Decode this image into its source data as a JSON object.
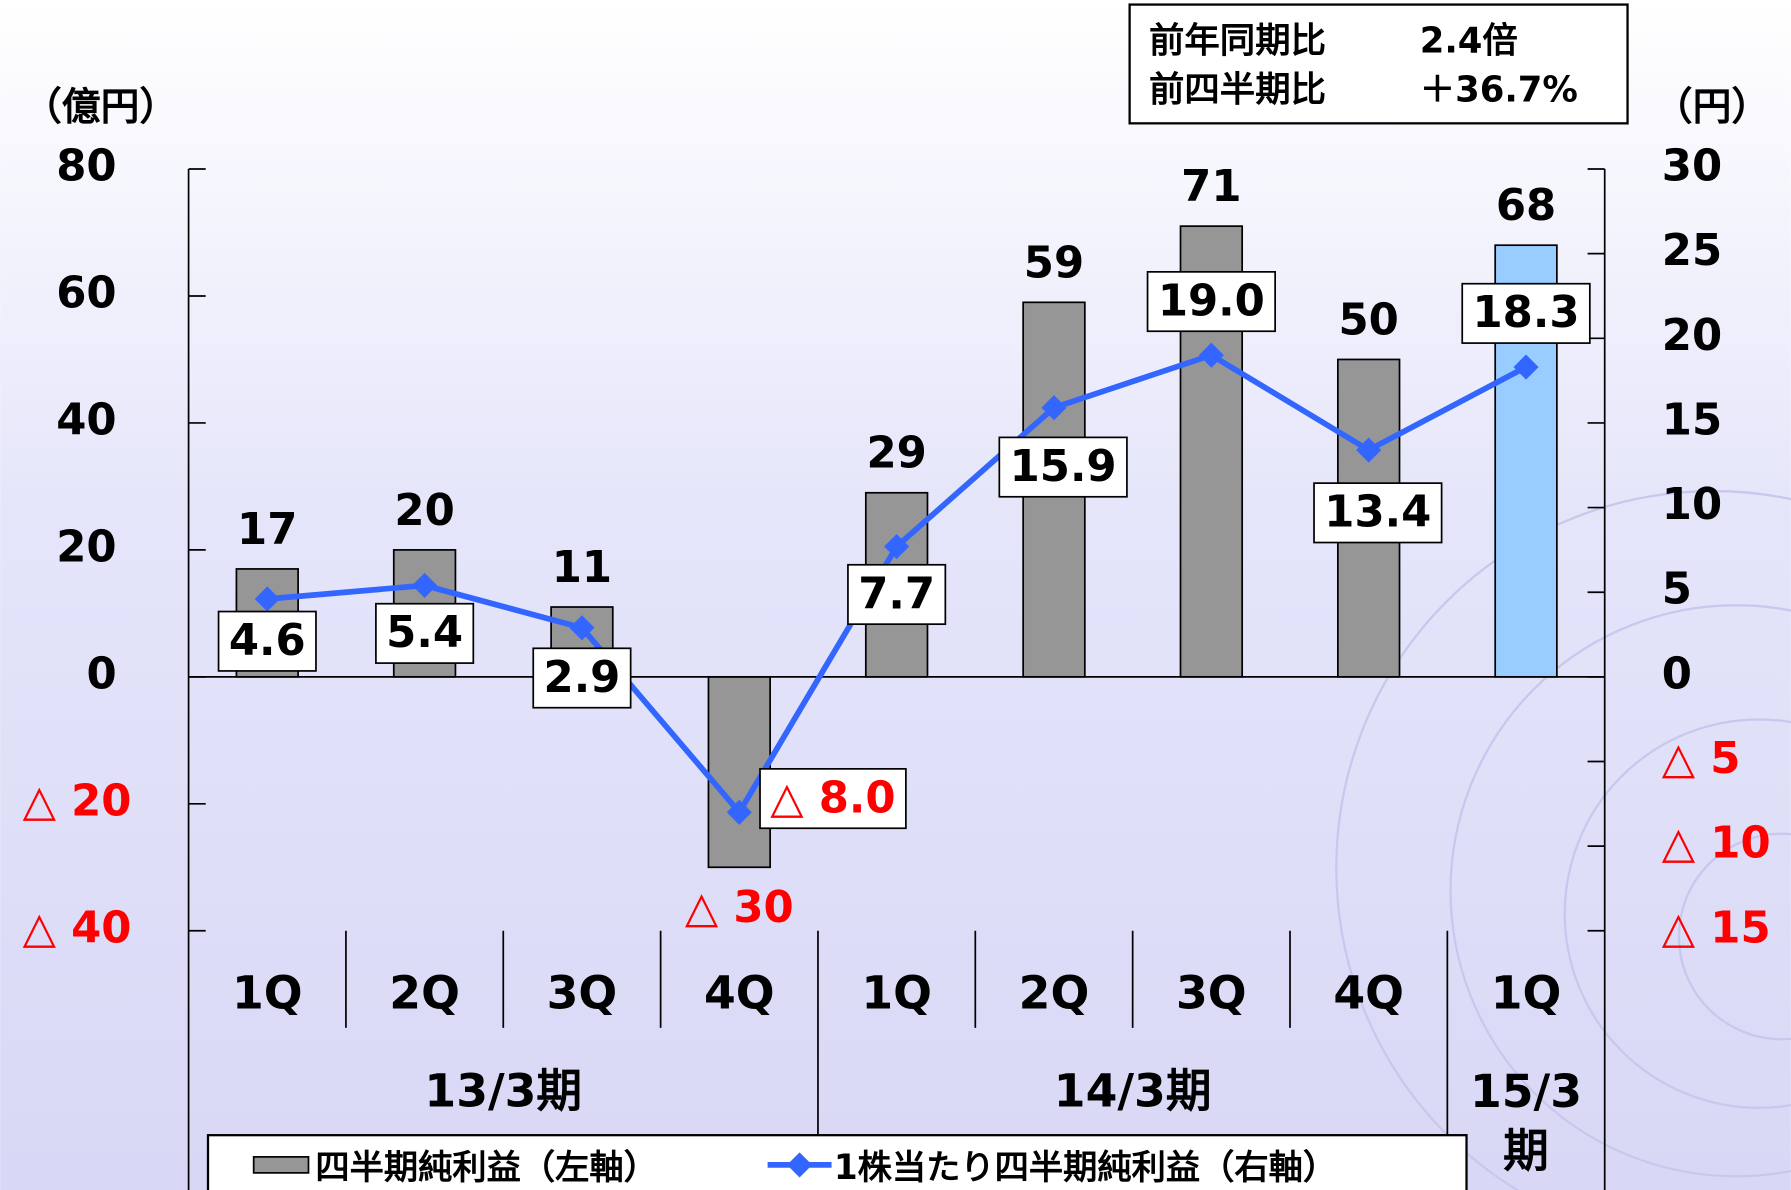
{
  "chart_data": {
    "type": "bar_line",
    "y_label": "（億円）",
    "y2_label": "（円）",
    "categories": [
      "1Q",
      "2Q",
      "3Q",
      "4Q",
      "1Q",
      "2Q",
      "3Q",
      "4Q",
      "1Q"
    ],
    "groups": [
      {
        "label": "13/3期",
        "span": 4
      },
      {
        "label": "14/3期",
        "span": 4
      },
      {
        "label": "15/3期",
        "span": 1
      }
    ],
    "series": [
      {
        "name": "四半期純利益（左軸）",
        "type": "bar",
        "color": "#969696",
        "highlight_color": "#99ccff",
        "values": [
          17,
          20,
          11,
          -30,
          29,
          59,
          71,
          50,
          68
        ],
        "value_labels": [
          "17",
          "20",
          "11",
          "△ 30",
          "29",
          "59",
          "71",
          "50",
          "68"
        ]
      },
      {
        "name": "1株当たり四半期純利益（右軸）",
        "type": "line",
        "axis": "y2",
        "color": "#3366ff",
        "values": [
          4.6,
          5.4,
          2.9,
          -8.0,
          7.7,
          15.9,
          19.0,
          13.4,
          18.3
        ],
        "value_labels": [
          "4.6",
          "5.4",
          "2.9",
          "△ 8.0",
          "7.7",
          "15.9",
          "19.0",
          "13.4",
          "18.3"
        ]
      }
    ],
    "ylim": [
      -40,
      80
    ],
    "yticks": [
      80,
      60,
      40,
      20,
      0,
      {
        "value": -20,
        "label": "△ 20"
      },
      {
        "value": -40,
        "label": "△ 40"
      }
    ],
    "y2lim": [
      -15,
      30
    ],
    "y2ticks": [
      30,
      25,
      20,
      15,
      10,
      5,
      0,
      {
        "value": -5,
        "label": "△ 5"
      },
      {
        "value": -10,
        "label": "△ 10"
      },
      {
        "value": -15,
        "label": "△ 15"
      }
    ],
    "annotation": [
      [
        "前年同期比",
        "2.4倍"
      ],
      [
        "前四半期比",
        "＋36.7%"
      ]
    ]
  }
}
